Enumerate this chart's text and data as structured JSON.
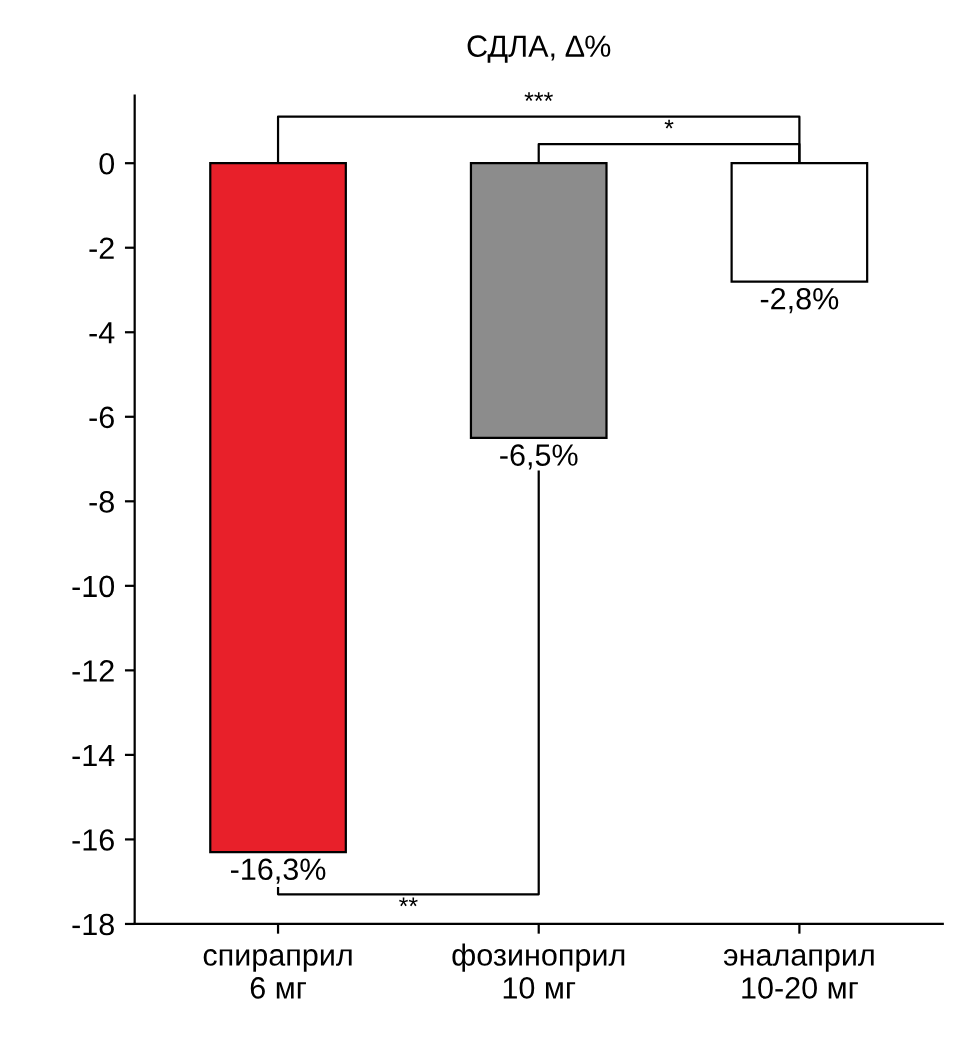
{
  "chart_data": {
    "type": "bar",
    "title": "СДЛА, ∆%",
    "categories": [
      "спираприл\n6 мг",
      "фозиноприл\n10 мг",
      "эналаприл\n10-20 мг"
    ],
    "values": [
      -16.3,
      -6.5,
      -2.8
    ],
    "colors": [
      "#e8202a",
      "#8c8c8c",
      "#ffffff"
    ],
    "value_labels": [
      "-16,3%",
      "-6,5%",
      "-2,8%"
    ],
    "ylim": [
      -18,
      1.6
    ],
    "yticks": [
      0,
      -2,
      -4,
      -6,
      -8,
      -10,
      -12,
      -14,
      -16,
      -18
    ],
    "annotations": [
      "***",
      "*",
      "**"
    ],
    "grid": false,
    "legend": false
  }
}
